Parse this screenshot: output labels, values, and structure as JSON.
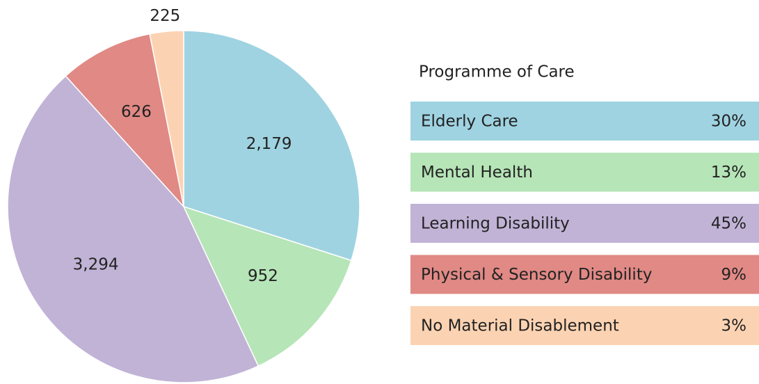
{
  "chart_data": {
    "type": "pie",
    "legend_title": "Programme of Care",
    "categories": [
      "Elderly Care",
      "Mental Health",
      "Learning Disability",
      "Physical & Sensory Disability",
      "No Material Disablement"
    ],
    "values": [
      2179,
      952,
      3294,
      626,
      225
    ],
    "value_labels": [
      "2,179",
      "952",
      "3,294",
      "626",
      "225"
    ],
    "shares": [
      {
        "value": 30,
        "label": "30%"
      },
      {
        "value": 13,
        "label": "13%"
      },
      {
        "value": 45,
        "label": "45%"
      },
      {
        "value": 9,
        "label": "9%"
      },
      {
        "value": 3,
        "label": "3%"
      }
    ],
    "colors": [
      "#9fd3e1",
      "#b6e5b7",
      "#c1b3d6",
      "#e08985",
      "#fcd3b2"
    ]
  }
}
